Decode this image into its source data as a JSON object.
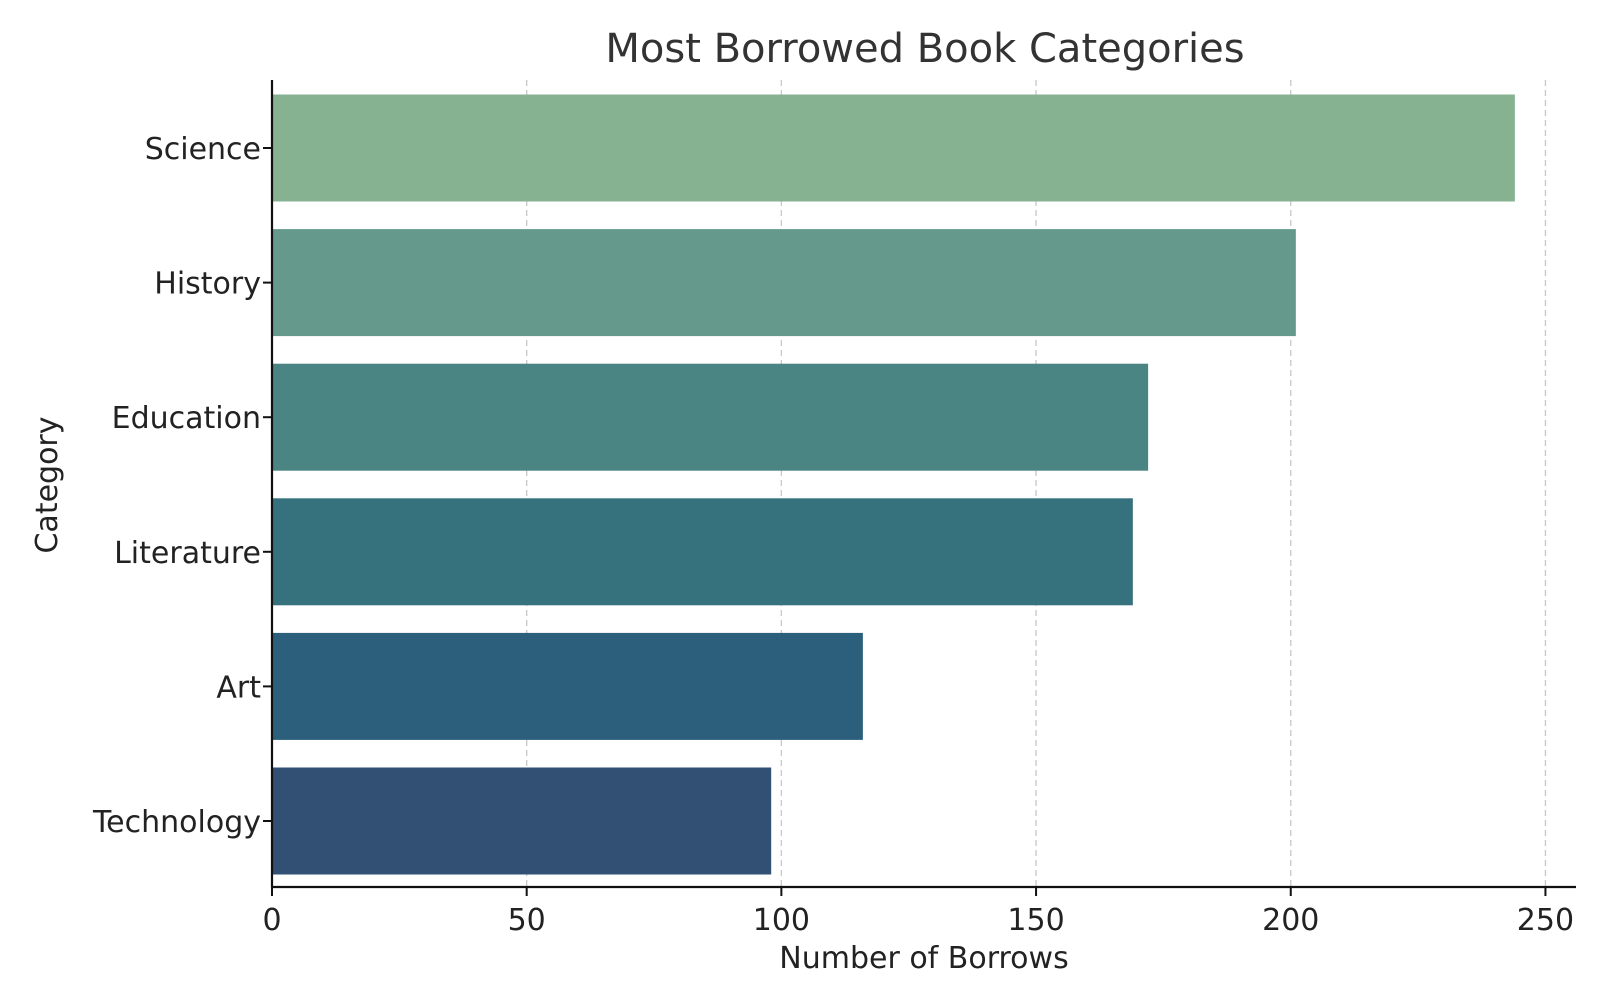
{
  "chart_data": {
    "type": "bar",
    "orientation": "horizontal",
    "title": "Most Borrowed Book Categories",
    "xlabel": "Number of Borrows",
    "ylabel": "Category",
    "categories": [
      "Science",
      "History",
      "Education",
      "Literature",
      "Art",
      "Technology"
    ],
    "values": [
      244,
      201,
      172,
      169,
      116,
      98
    ],
    "colors": [
      "#86b292",
      "#64998b",
      "#4a8483",
      "#36727d",
      "#2b5f7b",
      "#324f74"
    ],
    "xlim": [
      0,
      256
    ],
    "xticks": [
      0,
      50,
      100,
      150,
      200,
      250
    ],
    "grid": "vertical dashed",
    "legend": "none"
  }
}
